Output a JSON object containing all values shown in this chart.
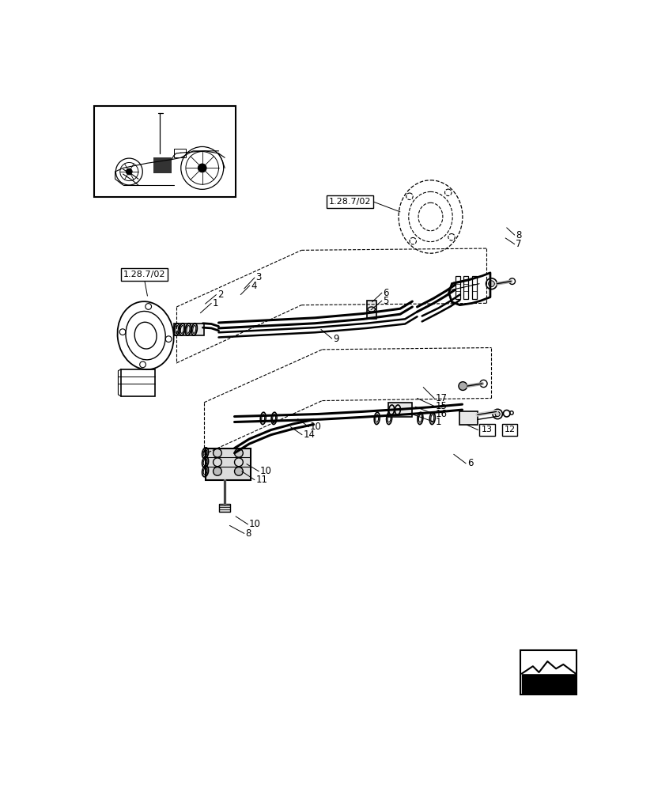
{
  "bg_color": "#ffffff",
  "line_color": "#000000",
  "fig_width": 8.28,
  "fig_height": 10.0,
  "dpi": 100,
  "ref_label_upper_left": "1.28.7/02",
  "ref_label_upper_right": "1.28.7/02",
  "label_12": "12",
  "label_13": "13"
}
